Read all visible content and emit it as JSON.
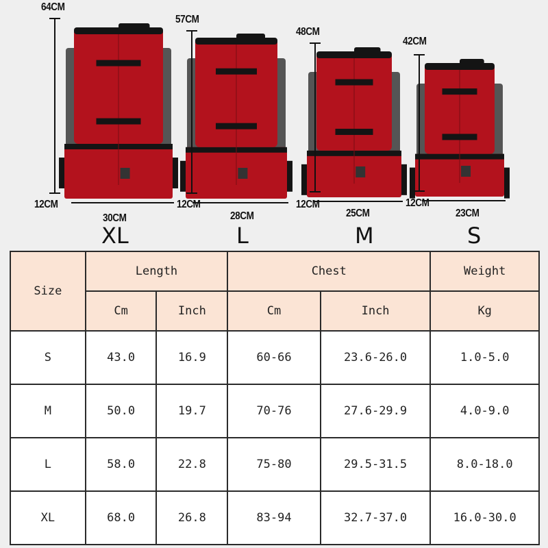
{
  "products": [
    {
      "size": "XL",
      "height": "64CM",
      "depth": "12CM",
      "width": "30CM"
    },
    {
      "size": "L",
      "height": "57CM",
      "depth": "12CM",
      "width": "28CM"
    },
    {
      "size": "M",
      "height": "48CM",
      "depth": "12CM",
      "width": "25CM"
    },
    {
      "size": "S",
      "height": "42CM",
      "depth": "12CM",
      "width": "23CM"
    }
  ],
  "colors": {
    "bag": "#b3121d",
    "strap": "#141414",
    "header_bg": "#fbe4d5"
  },
  "table": {
    "size_header": "Size",
    "groups": [
      "Length",
      "Chest",
      "Weight"
    ],
    "units": [
      "Cm",
      "Inch",
      "Cm",
      "Inch",
      "Kg"
    ],
    "rows": [
      [
        "S",
        "43.0",
        "16.9",
        "60-66",
        "23.6-26.0",
        "1.0-5.0"
      ],
      [
        "M",
        "50.0",
        "19.7",
        "70-76",
        "27.6-29.9",
        "4.0-9.0"
      ],
      [
        "L",
        "58.0",
        "22.8",
        "75-80",
        "29.5-31.5",
        "8.0-18.0"
      ],
      [
        "XL",
        "68.0",
        "26.8",
        "83-94",
        "32.7-37.0",
        "16.0-30.0"
      ]
    ]
  }
}
